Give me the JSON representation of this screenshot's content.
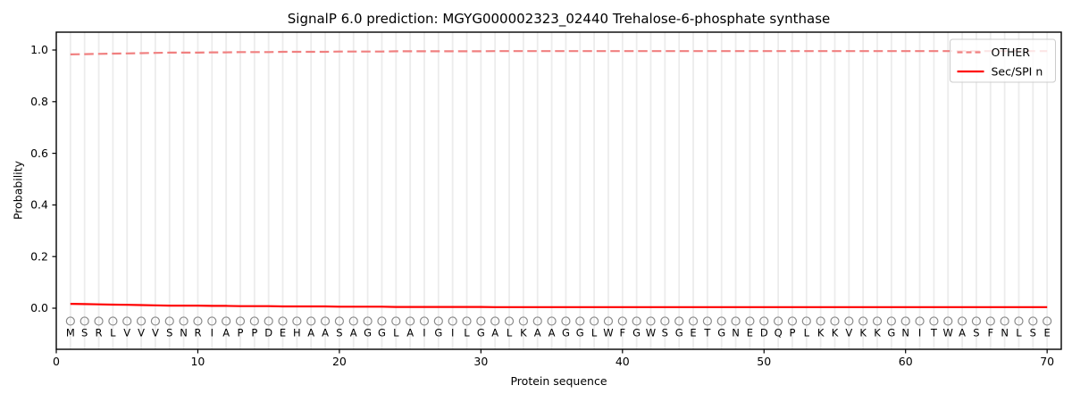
{
  "figure": {
    "title": "SignalP 6.0 prediction: MGYG000002323_02440 Trehalose-6-phosphate synthase",
    "background": "#ffffff"
  },
  "chart_data": {
    "type": "line",
    "title": "SignalP 6.0 prediction: MGYG000002323_02440 Trehalose-6-phosphate synthase",
    "xlabel": "Protein sequence",
    "ylabel": "Probability",
    "xlim": [
      0,
      71
    ],
    "ylim": [
      -0.16,
      1.07
    ],
    "xticks": [
      0,
      10,
      20,
      30,
      40,
      50,
      60,
      70
    ],
    "yticks": [
      0.0,
      0.2,
      0.4,
      0.6,
      0.8,
      1.0
    ],
    "grid": {
      "axis": "x",
      "per_residue": true,
      "color": "#ececec"
    },
    "legend": {
      "position": "upper right",
      "border_color": "#cccccc",
      "background": "#ffffff",
      "entries": [
        {
          "label": "OTHER",
          "style": "dashed",
          "color": "#f08080"
        },
        {
          "label": "Sec/SPI n",
          "style": "solid",
          "color": "#ff0000"
        }
      ]
    },
    "x": [
      1,
      2,
      3,
      4,
      5,
      6,
      7,
      8,
      9,
      10,
      11,
      12,
      13,
      14,
      15,
      16,
      17,
      18,
      19,
      20,
      21,
      22,
      23,
      24,
      25,
      26,
      27,
      28,
      29,
      30,
      31,
      32,
      33,
      34,
      35,
      36,
      37,
      38,
      39,
      40,
      41,
      42,
      43,
      44,
      45,
      46,
      47,
      48,
      49,
      50,
      51,
      52,
      53,
      54,
      55,
      56,
      57,
      58,
      59,
      60,
      61,
      62,
      63,
      64,
      65,
      66,
      67,
      68,
      69,
      70
    ],
    "sequence": [
      "M",
      "S",
      "R",
      "L",
      "V",
      "V",
      "V",
      "S",
      "N",
      "R",
      "I",
      "A",
      "P",
      "P",
      "D",
      "E",
      "H",
      "A",
      "A",
      "S",
      "A",
      "G",
      "G",
      "L",
      "A",
      "I",
      "G",
      "I",
      "L",
      "G",
      "A",
      "L",
      "K",
      "A",
      "A",
      "G",
      "G",
      "L",
      "W",
      "F",
      "G",
      "W",
      "S",
      "G",
      "E",
      "T",
      "G",
      "N",
      "E",
      "D",
      "Q",
      "P",
      "L",
      "K",
      "K",
      "V",
      "K",
      "K",
      "G",
      "N",
      "I",
      "T",
      "W",
      "A",
      "S",
      "F",
      "N",
      "L",
      "S",
      "E"
    ],
    "series": [
      {
        "name": "OTHER",
        "style": "dashed",
        "color": "#f08080",
        "values": [
          0.983,
          0.984,
          0.985,
          0.986,
          0.987,
          0.988,
          0.989,
          0.99,
          0.99,
          0.99,
          0.991,
          0.991,
          0.992,
          0.992,
          0.992,
          0.993,
          0.993,
          0.993,
          0.993,
          0.994,
          0.994,
          0.994,
          0.994,
          0.995,
          0.995,
          0.995,
          0.995,
          0.995,
          0.995,
          0.995,
          0.996,
          0.996,
          0.996,
          0.996,
          0.996,
          0.996,
          0.996,
          0.996,
          0.996,
          0.996,
          0.996,
          0.996,
          0.996,
          0.996,
          0.996,
          0.996,
          0.996,
          0.996,
          0.996,
          0.996,
          0.996,
          0.996,
          0.996,
          0.996,
          0.996,
          0.996,
          0.996,
          0.996,
          0.996,
          0.996,
          0.996,
          0.996,
          0.996,
          0.996,
          0.996,
          0.996,
          0.996,
          0.996,
          0.996,
          0.996
        ]
      },
      {
        "name": "Sec/SPI n",
        "style": "solid",
        "color": "#ff0000",
        "values": [
          0.017,
          0.016,
          0.015,
          0.014,
          0.013,
          0.012,
          0.011,
          0.01,
          0.01,
          0.01,
          0.009,
          0.009,
          0.008,
          0.008,
          0.008,
          0.007,
          0.007,
          0.007,
          0.007,
          0.006,
          0.006,
          0.006,
          0.006,
          0.005,
          0.005,
          0.005,
          0.005,
          0.005,
          0.005,
          0.005,
          0.004,
          0.004,
          0.004,
          0.004,
          0.004,
          0.004,
          0.004,
          0.004,
          0.004,
          0.004,
          0.004,
          0.004,
          0.004,
          0.004,
          0.004,
          0.004,
          0.004,
          0.004,
          0.004,
          0.004,
          0.004,
          0.004,
          0.004,
          0.004,
          0.004,
          0.004,
          0.004,
          0.004,
          0.004,
          0.004,
          0.004,
          0.004,
          0.004,
          0.004,
          0.004,
          0.004,
          0.004,
          0.004,
          0.004,
          0.004
        ]
      }
    ],
    "residue_markers": {
      "shape": "open-circle",
      "color": "#8a8a8a",
      "y_value": -0.05
    },
    "residue_letters": {
      "color": "#000000",
      "y_value": -0.095
    }
  }
}
